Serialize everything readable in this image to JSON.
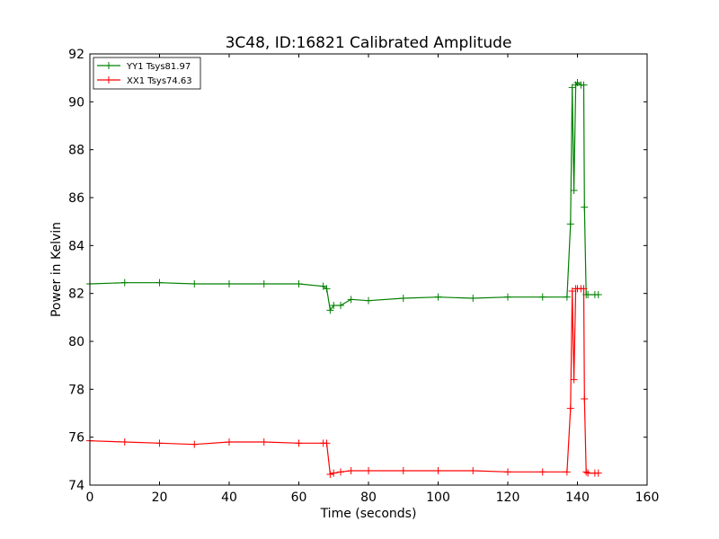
{
  "chart_data": {
    "type": "line",
    "title": "3C48, ID:16821 Calibrated Amplitude",
    "xlabel": "Time (seconds)",
    "ylabel": "Power in Kelvin",
    "xlim": [
      0,
      160
    ],
    "ylim": [
      74,
      92
    ],
    "xticks": [
      "0",
      "20",
      "40",
      "60",
      "80",
      "100",
      "120",
      "140",
      "160"
    ],
    "yticks": [
      "74",
      "76",
      "78",
      "80",
      "82",
      "84",
      "86",
      "88",
      "90",
      "92"
    ],
    "grid": false,
    "legend_position": "top-left",
    "marker": "plus",
    "series": [
      {
        "name": "YY1 Tsys81.97",
        "color": "#008000",
        "x": [
          0,
          10,
          20,
          30,
          40,
          50,
          60,
          67,
          68,
          69,
          70,
          72,
          75,
          80,
          90,
          100,
          110,
          120,
          130,
          137,
          138,
          138.5,
          139,
          139.5,
          140,
          141,
          141.8,
          142,
          142.5,
          143,
          145,
          146
        ],
        "y": [
          82.4,
          82.45,
          82.45,
          82.4,
          82.4,
          82.4,
          82.4,
          82.3,
          82.2,
          81.3,
          81.5,
          81.5,
          81.75,
          81.7,
          81.8,
          81.85,
          81.8,
          81.85,
          81.85,
          81.85,
          84.9,
          90.6,
          86.3,
          90.7,
          90.8,
          90.7,
          90.7,
          85.6,
          81.95,
          81.95,
          81.95,
          81.95
        ]
      },
      {
        "name": "XX1 Tsys74.63",
        "color": "#ff0000",
        "x": [
          0,
          10,
          20,
          30,
          40,
          50,
          60,
          67,
          68,
          69,
          70,
          72,
          75,
          80,
          90,
          100,
          110,
          120,
          130,
          137,
          138,
          138.5,
          139,
          139.5,
          140,
          141,
          141.8,
          142,
          142.5,
          143,
          145,
          146
        ],
        "y": [
          75.85,
          75.8,
          75.75,
          75.7,
          75.8,
          75.8,
          75.75,
          75.75,
          75.75,
          74.45,
          74.5,
          74.55,
          74.6,
          74.6,
          74.6,
          74.6,
          74.6,
          74.55,
          74.55,
          74.55,
          77.2,
          82.1,
          78.4,
          82.2,
          82.2,
          82.2,
          82.2,
          77.6,
          74.55,
          74.5,
          74.5,
          74.5
        ]
      }
    ]
  }
}
